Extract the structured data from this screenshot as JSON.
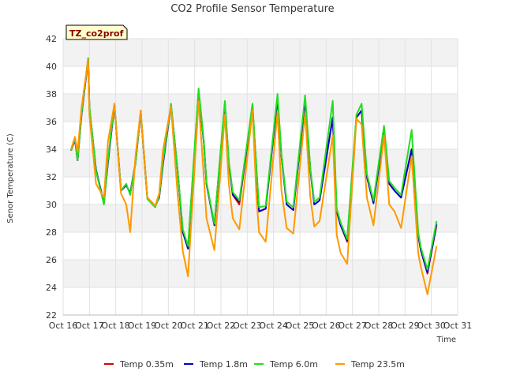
{
  "chart_data": {
    "type": "line",
    "title": "CO2 Profile Sensor Temperature",
    "xlabel": "Time",
    "ylabel": "Senor Temperature (C)",
    "ylim": [
      22,
      42
    ],
    "y_ticks": [
      "22",
      "24",
      "26",
      "28",
      "30",
      "32",
      "34",
      "36",
      "38",
      "40",
      "42"
    ],
    "x_ticks": [
      "Oct 16",
      "Oct 17",
      "Oct 18",
      "Oct 19",
      "Oct 20",
      "Oct 21",
      "Oct 22",
      "Oct 23",
      "Oct 24",
      "Oct 25",
      "Oct 26",
      "Oct 27",
      "Oct 28",
      "Oct 29",
      "Oct 30",
      "Oct 31"
    ],
    "xlim": [
      0,
      15
    ],
    "badge": "TZ_co2prof",
    "grid": true,
    "legend_position": "bottom",
    "x": [
      0.3,
      0.45,
      0.55,
      0.7,
      0.95,
      1.0,
      1.25,
      1.55,
      1.7,
      1.95,
      2.2,
      2.4,
      2.55,
      2.75,
      2.95,
      3.2,
      3.5,
      3.65,
      3.8,
      4.1,
      4.35,
      4.55,
      4.75,
      5.15,
      5.35,
      5.45,
      5.75,
      6.15,
      6.3,
      6.45,
      6.7,
      7.2,
      7.35,
      7.45,
      7.7,
      8.15,
      8.3,
      8.5,
      8.75,
      9.2,
      9.4,
      9.55,
      9.75,
      10.25,
      10.4,
      10.55,
      10.8,
      11.15,
      11.35,
      11.55,
      11.8,
      12.2,
      12.4,
      12.6,
      12.85,
      13.25,
      13.5,
      13.6,
      13.85,
      14.2
    ],
    "series": [
      {
        "name": "Temp 0.35m",
        "color": "#dd0000",
        "values": [
          33.9,
          34.7,
          33.2,
          36.5,
          40.5,
          37.0,
          32.5,
          30.1,
          33.0,
          37.2,
          31.0,
          31.4,
          30.8,
          33.0,
          36.7,
          30.5,
          29.9,
          30.5,
          33.0,
          37.2,
          32.5,
          28.0,
          26.8,
          38.2,
          34.5,
          31.5,
          28.5,
          37.3,
          33.0,
          30.7,
          30.0,
          37.1,
          32.5,
          29.5,
          29.7,
          37.7,
          33.5,
          30.0,
          29.6,
          37.6,
          32.5,
          30.0,
          30.3,
          36.3,
          29.5,
          28.5,
          27.3,
          36.3,
          36.8,
          32.0,
          30.1,
          35.3,
          31.5,
          31.0,
          30.5,
          34.0,
          27.8,
          26.7,
          25.0,
          28.5
        ]
      },
      {
        "name": "Temp 1.8m",
        "color": "#0000cc",
        "values": [
          33.9,
          34.7,
          33.2,
          36.5,
          40.5,
          37.0,
          32.5,
          30.1,
          33.0,
          37.2,
          31.0,
          31.4,
          30.8,
          33.0,
          36.7,
          30.5,
          29.9,
          30.5,
          33.0,
          37.2,
          32.5,
          28.0,
          26.8,
          38.2,
          34.5,
          31.5,
          28.5,
          37.3,
          33.0,
          30.7,
          30.2,
          37.1,
          32.5,
          29.5,
          29.7,
          37.7,
          33.5,
          30.0,
          29.6,
          37.6,
          32.5,
          30.0,
          30.3,
          36.3,
          29.5,
          28.5,
          27.4,
          36.3,
          36.8,
          32.0,
          30.1,
          35.3,
          31.5,
          31.0,
          30.5,
          34.0,
          27.8,
          26.7,
          25.1,
          28.6
        ]
      },
      {
        "name": "Temp 6.0m",
        "color": "#22dd22",
        "values": [
          33.9,
          34.8,
          33.2,
          36.6,
          40.6,
          37.1,
          32.4,
          30.0,
          33.2,
          37.3,
          31.0,
          31.5,
          30.7,
          33.0,
          36.8,
          30.4,
          29.8,
          30.6,
          33.2,
          37.3,
          32.5,
          28.2,
          27.0,
          38.4,
          34.6,
          31.6,
          28.6,
          37.5,
          33.1,
          30.9,
          30.3,
          37.3,
          32.6,
          29.8,
          29.9,
          38.0,
          33.6,
          30.2,
          29.8,
          37.9,
          32.6,
          30.2,
          30.5,
          37.5,
          29.7,
          28.7,
          27.5,
          36.5,
          37.3,
          32.2,
          30.3,
          35.7,
          31.7,
          31.2,
          30.7,
          35.4,
          28.0,
          26.9,
          25.3,
          28.8
        ]
      },
      {
        "name": "Temp 23.5m",
        "color": "#ff9900",
        "values": [
          34.0,
          34.9,
          33.8,
          37.0,
          40.5,
          36.5,
          31.5,
          30.5,
          34.5,
          37.3,
          30.8,
          30.0,
          28.0,
          33.5,
          36.8,
          30.5,
          29.9,
          30.8,
          34.0,
          37.1,
          30.8,
          26.6,
          24.8,
          37.5,
          32.0,
          29.0,
          26.7,
          36.5,
          31.5,
          29.0,
          28.2,
          36.8,
          30.5,
          28.0,
          27.3,
          36.7,
          31.0,
          28.3,
          27.9,
          36.6,
          30.5,
          28.4,
          28.8,
          35.0,
          27.8,
          26.5,
          25.7,
          36.2,
          35.8,
          30.5,
          28.5,
          35.0,
          30.0,
          29.5,
          28.3,
          33.5,
          26.5,
          25.5,
          23.5,
          27.0
        ]
      }
    ]
  }
}
